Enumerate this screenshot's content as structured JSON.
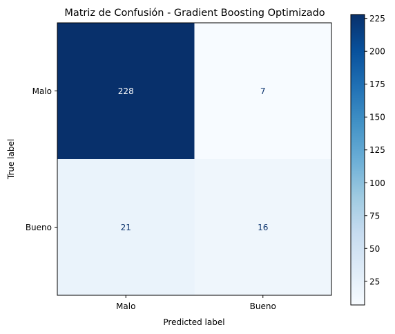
{
  "chart_data": {
    "type": "heatmap",
    "title": "Matriz de Confusión - Gradient Boosting Optimizado",
    "xlabel": "Predicted label",
    "ylabel": "True label",
    "x_categories": [
      "Malo",
      "Bueno"
    ],
    "y_categories": [
      "Malo",
      "Bueno"
    ],
    "values": [
      [
        228,
        7
      ],
      [
        21,
        16
      ]
    ],
    "colormap": "Blues",
    "colorbar": {
      "range": [
        7,
        228
      ],
      "ticks": [
        25,
        50,
        75,
        100,
        125,
        150,
        175,
        200,
        225
      ]
    },
    "grid": false
  }
}
